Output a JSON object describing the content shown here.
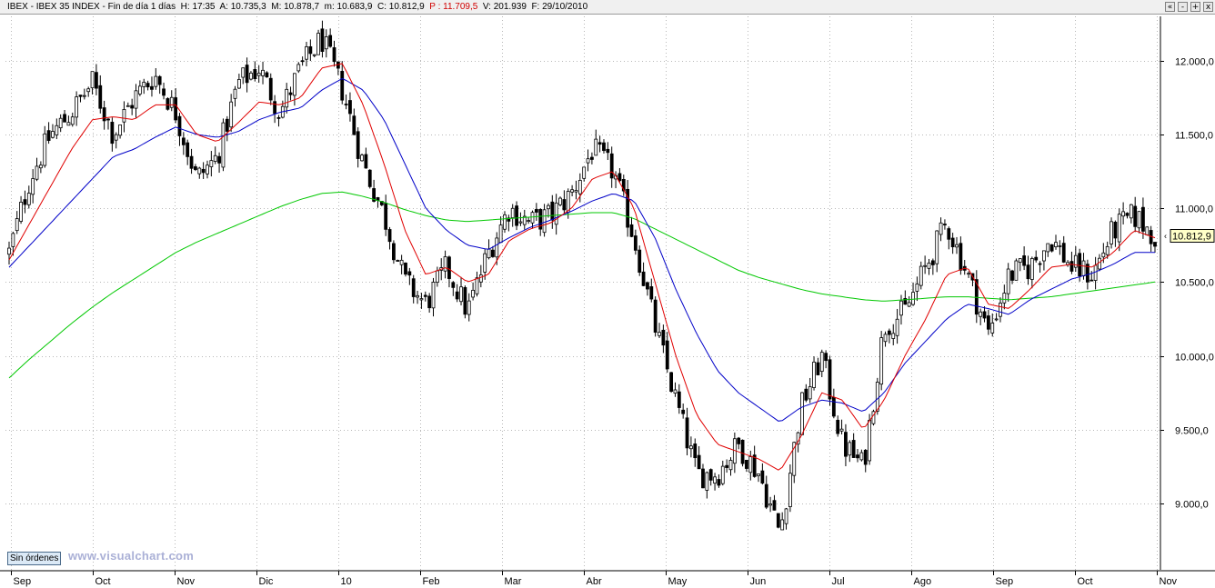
{
  "header": {
    "symbol": "IBEX",
    "name": "IBEX 35 INDEX",
    "period": "Fin de día 1 días",
    "h_label": "H:",
    "h": "17:35",
    "a_label": "A:",
    "a": "10.735,3",
    "m_label": "M:",
    "m": "10.878,7",
    "min_label": "m:",
    "min": "10.683,9",
    "c_label": "C:",
    "c": "10.812,9",
    "p_label": "P :",
    "p": "11.709,5",
    "v_label": "V:",
    "v": "201.939",
    "f_label": "F:",
    "f": "29/10/2010"
  },
  "window_buttons": [
    "«",
    "-",
    "+",
    "x"
  ],
  "orders_badge": "Sin órdenes",
  "brand": "www.visualchart.com",
  "colors": {
    "candle": "#000000",
    "ma_short": "#e00000",
    "ma_mid": "#0000c8",
    "ma_long": "#00c800",
    "grid": "#b8b8b8",
    "last_price_box": "#ffffc8"
  },
  "chart_data": {
    "type": "candlestick",
    "x_labels": [
      "Sep",
      "Oct",
      "Nov",
      "Dic",
      "10",
      "Feb",
      "Mar",
      "Abr",
      "May",
      "Jun",
      "Jul",
      "Ago",
      "Sep",
      "Oct",
      "Nov"
    ],
    "y_ticks": [
      "12.000,0",
      "11.500,0",
      "11.000,0",
      "10.500,0",
      "10.000,0",
      "9.500,0",
      "9.000,0"
    ],
    "y_tick_values": [
      12000,
      11500,
      11000,
      10500,
      10000,
      9500,
      9000
    ],
    "ylim": [
      8550,
      12300
    ],
    "last_price_label": "10.812,9",
    "last_price": 10812.9,
    "grid": true,
    "closes_weekly": [
      10700,
      11200,
      11500,
      11650,
      11850,
      11500,
      11750,
      11900,
      11650,
      11200,
      11350,
      11850,
      11950,
      11650,
      11950,
      12150,
      11800,
      11300,
      10950,
      10500,
      10350,
      10600,
      10300,
      10700,
      11000,
      10900,
      10950,
      11100,
      11400,
      11250,
      10800,
      10200,
      9700,
      9200,
      9200,
      9400,
      9200,
      8800,
      9650,
      10000,
      9400,
      9250,
      10200,
      10300,
      10600,
      10900,
      10550,
      10150,
      10550,
      10600,
      10800,
      10600,
      10550,
      10850,
      10950,
      10813
    ],
    "ma_short_weekly": [
      10650,
      10900,
      11150,
      11400,
      11600,
      11620,
      11600,
      11700,
      11700,
      11500,
      11450,
      11580,
      11720,
      11700,
      11750,
      11950,
      11980,
      11700,
      11300,
      10850,
      10550,
      10600,
      10500,
      10550,
      10780,
      10860,
      10900,
      11000,
      11200,
      11250,
      11000,
      10500,
      10000,
      9600,
      9400,
      9350,
      9300,
      9220,
      9450,
      9750,
      9700,
      9500,
      9700,
      10000,
      10250,
      10550,
      10600,
      10350,
      10320,
      10450,
      10600,
      10620,
      10600,
      10700,
      10850,
      10800
    ],
    "ma_mid_weekly": [
      10600,
      10750,
      10900,
      11050,
      11200,
      11350,
      11400,
      11480,
      11550,
      11500,
      11480,
      11520,
      11600,
      11650,
      11680,
      11800,
      11880,
      11800,
      11600,
      11300,
      11000,
      10850,
      10750,
      10720,
      10800,
      10870,
      10920,
      10980,
      11050,
      11100,
      11050,
      10800,
      10450,
      10150,
      9900,
      9750,
      9650,
      9550,
      9650,
      9700,
      9680,
      9620,
      9750,
      9950,
      10100,
      10250,
      10350,
      10320,
      10280,
      10380,
      10450,
      10520,
      10560,
      10620,
      10700,
      10700
    ],
    "ma_long_weekly": [
      9850,
      9980,
      10100,
      10220,
      10330,
      10430,
      10520,
      10610,
      10700,
      10770,
      10830,
      10890,
      10950,
      11010,
      11060,
      11100,
      11110,
      11080,
      11040,
      10990,
      10950,
      10920,
      10910,
      10920,
      10930,
      10940,
      10950,
      10960,
      10970,
      10970,
      10930,
      10860,
      10790,
      10720,
      10650,
      10580,
      10530,
      10490,
      10450,
      10420,
      10400,
      10380,
      10370,
      10380,
      10390,
      10400,
      10400,
      10390,
      10380,
      10390,
      10400,
      10420,
      10440,
      10460,
      10480,
      10500
    ]
  }
}
